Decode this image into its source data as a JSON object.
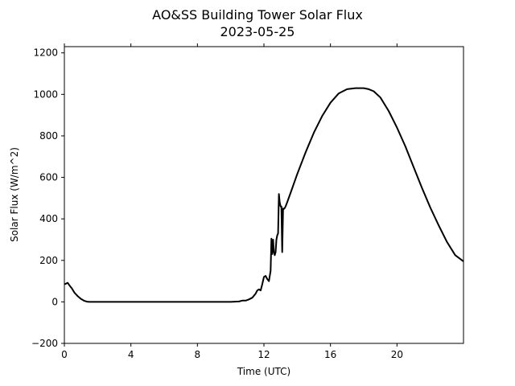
{
  "chart_data": {
    "type": "line",
    "title": "AO&SS Building Tower Solar Flux",
    "subtitle": "2023-05-25",
    "xlabel": "Time (UTC)",
    "ylabel": "Solar Flux (W/m^2)",
    "xlim": [
      0,
      24
    ],
    "ylim": [
      -200,
      1230
    ],
    "xticks": [
      0,
      4,
      8,
      12,
      16,
      20
    ],
    "yticks": [
      -200,
      0,
      200,
      400,
      600,
      800,
      1000,
      1200
    ],
    "grid": false,
    "series": [
      {
        "color": "#000000",
        "x": [
          0.0,
          0.1,
          0.2,
          0.3,
          0.45,
          0.6,
          0.8,
          1.0,
          1.2,
          1.35,
          1.5,
          2,
          4,
          6,
          8,
          10,
          10.5,
          10.7,
          10.9,
          11.1,
          11.3,
          11.5,
          11.6,
          11.7,
          11.8,
          11.9,
          12.0,
          12.1,
          12.2,
          12.3,
          12.4,
          12.45,
          12.5,
          12.55,
          12.6,
          12.65,
          12.7,
          12.75,
          12.8,
          12.85,
          12.9,
          12.95,
          13.0,
          13.05,
          13.1,
          13.15,
          13.2,
          13.25,
          13.3,
          13.4,
          13.6,
          14.0,
          14.5,
          15.0,
          15.5,
          16.0,
          16.5,
          17.0,
          17.5,
          18.0,
          18.3,
          18.6,
          19.0,
          19.5,
          20.0,
          20.5,
          21.0,
          21.5,
          22.0,
          22.5,
          23.0,
          23.5,
          24.0
        ],
        "y": [
          85,
          88,
          92,
          80,
          65,
          45,
          28,
          14,
          5,
          1,
          0,
          0,
          0,
          0,
          0,
          0,
          2,
          6,
          6,
          12,
          20,
          40,
          55,
          60,
          55,
          85,
          120,
          125,
          110,
          100,
          150,
          305,
          230,
          300,
          240,
          225,
          240,
          300,
          320,
          330,
          520,
          480,
          460,
          460,
          240,
          450,
          448,
          452,
          460,
          480,
          525,
          615,
          720,
          815,
          895,
          960,
          1005,
          1025,
          1030,
          1030,
          1025,
          1015,
          985,
          920,
          840,
          750,
          650,
          550,
          455,
          370,
          290,
          225,
          195
        ]
      }
    ]
  }
}
